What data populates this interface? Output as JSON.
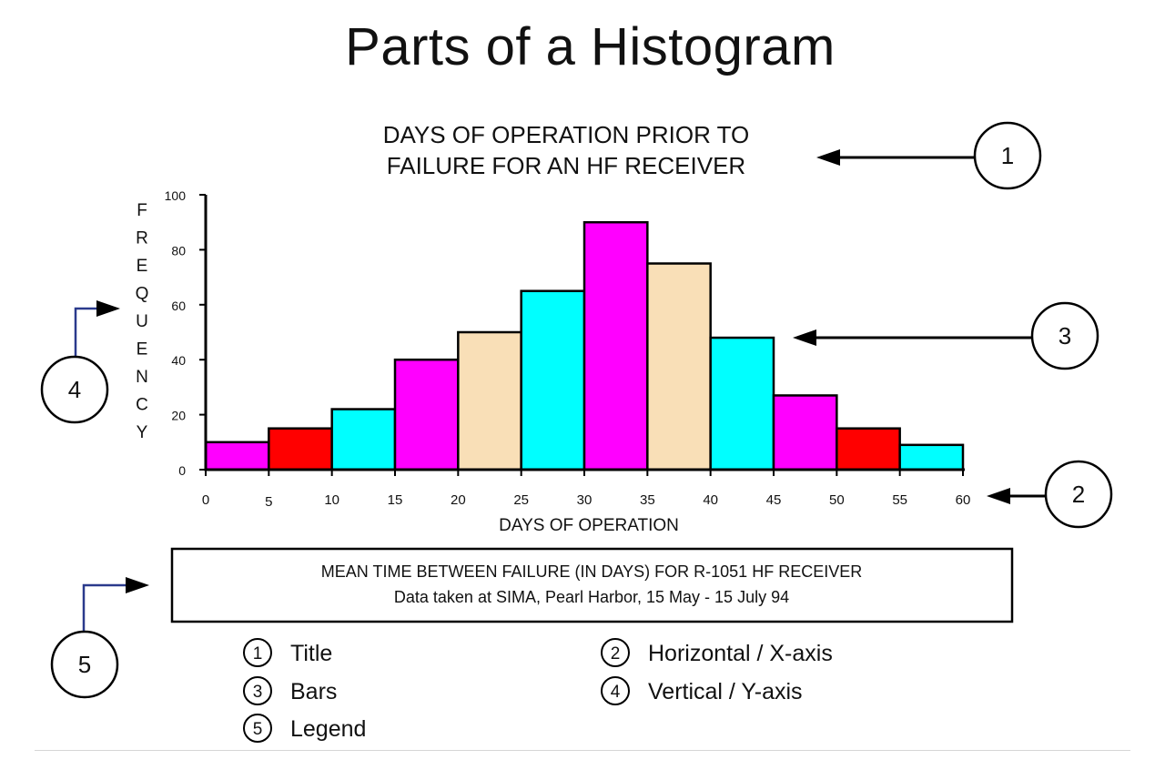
{
  "page_title": "Parts of a Histogram",
  "chart_data": {
    "type": "bar",
    "title": [
      "DAYS OF OPERATION PRIOR TO",
      "FAILURE FOR AN HF RECEIVER"
    ],
    "xlabel": "DAYS OF OPERATION",
    "ylabel": "FREQUENCY",
    "x_ticks": [
      0,
      5,
      10,
      15,
      20,
      25,
      30,
      35,
      40,
      45,
      50,
      55,
      60
    ],
    "y_ticks": [
      0,
      20,
      40,
      60,
      80,
      100
    ],
    "xlim": [
      0,
      60
    ],
    "ylim": [
      0,
      100
    ],
    "bins": [
      [
        0,
        5
      ],
      [
        5,
        10
      ],
      [
        10,
        15
      ],
      [
        15,
        20
      ],
      [
        20,
        25
      ],
      [
        25,
        30
      ],
      [
        30,
        35
      ],
      [
        35,
        40
      ],
      [
        40,
        45
      ],
      [
        45,
        50
      ],
      [
        50,
        55
      ],
      [
        55,
        60
      ]
    ],
    "values": [
      10,
      15,
      22,
      40,
      50,
      65,
      90,
      75,
      48,
      27,
      15,
      9
    ],
    "bar_colors": [
      "#ff00ff",
      "#ff0000",
      "#00ffff",
      "#ff00ff",
      "#f9dfb7",
      "#00ffff",
      "#ff00ff",
      "#f9dfb7",
      "#00ffff",
      "#ff00ff",
      "#ff0000",
      "#00ffff"
    ],
    "grid": false,
    "legend_box": [
      "MEAN TIME BETWEEN FAILURE (IN DAYS) FOR R-1051 HF RECEIVER",
      "Data taken at SIMA, Pearl Harbor, 15 May - 15 July 94"
    ]
  },
  "callouts": [
    "1",
    "2",
    "3",
    "4",
    "5"
  ],
  "key": [
    {
      "num": "1",
      "label": "Title"
    },
    {
      "num": "2",
      "label": "Horizontal / X-axis"
    },
    {
      "num": "3",
      "label": "Bars"
    },
    {
      "num": "4",
      "label": "Vertical / Y-axis"
    },
    {
      "num": "5",
      "label": "Legend"
    }
  ]
}
